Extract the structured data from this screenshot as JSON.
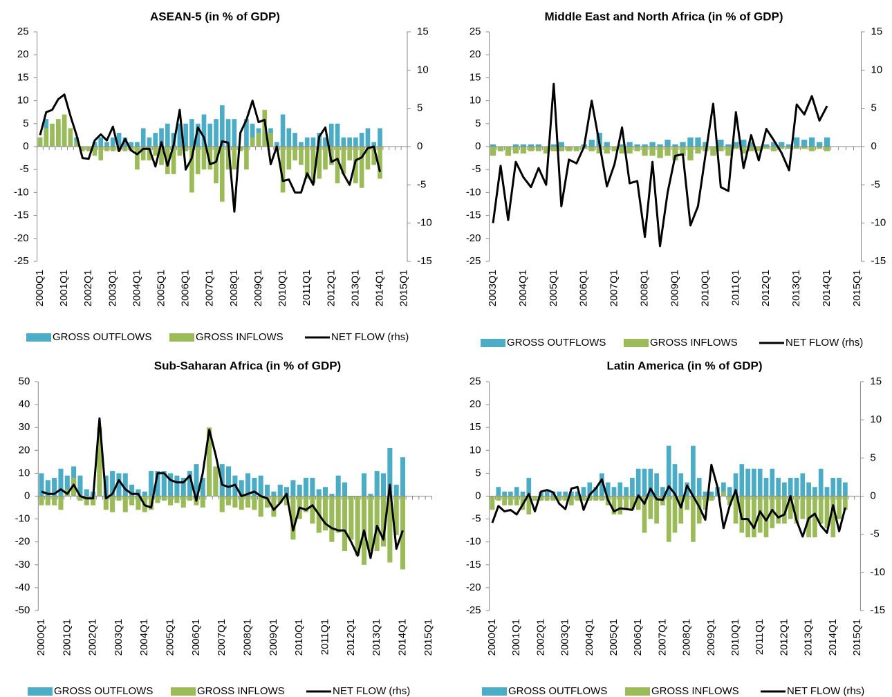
{
  "chart_data": [
    {
      "type": "bar",
      "title": "ASEAN-5 (in % of GDP)",
      "categories": [
        "2000Q1",
        null,
        null,
        null,
        "2001Q1",
        null,
        null,
        null,
        "2002Q1",
        null,
        null,
        null,
        "2003Q1",
        null,
        null,
        null,
        "2004Q1",
        null,
        null,
        null,
        "2005Q1",
        null,
        null,
        null,
        "2006Q1",
        null,
        null,
        null,
        "2007Q1",
        null,
        null,
        null,
        "2008Q1",
        null,
        null,
        null,
        "2009Q1",
        null,
        null,
        null,
        "2010Q1",
        null,
        null,
        null,
        "2011Q1",
        null,
        null,
        null,
        "2012Q1",
        null,
        null,
        null,
        "2013Q1",
        null,
        null,
        null,
        "2014Q1",
        null,
        null,
        null,
        "2015Q1"
      ],
      "series": [
        {
          "name": "GROSS OUTFLOWS",
          "color": "#4bacc6",
          "values": [
            2,
            6,
            2,
            5,
            5,
            2,
            2,
            0,
            -1,
            1,
            2,
            1,
            2,
            3,
            2,
            1,
            1,
            4,
            2,
            3,
            4,
            5,
            3,
            5,
            5,
            6,
            5,
            7,
            5,
            6,
            9,
            6,
            6,
            0,
            6,
            5,
            4,
            3,
            4,
            1,
            7,
            4,
            3,
            1,
            2,
            2,
            3,
            2,
            5,
            5,
            2,
            2,
            2,
            3,
            4,
            1,
            4,
            null,
            null,
            null,
            null
          ]
        },
        {
          "name": "GROSS INFLOWS",
          "color": "#9bbb59",
          "values": [
            2,
            4,
            5,
            6,
            7,
            4,
            1,
            -1,
            -1,
            -2,
            -3,
            -1,
            -1,
            -1,
            -1,
            -1,
            -5,
            -3,
            -3,
            -2,
            -4,
            -6,
            -6,
            -2,
            -1,
            -10,
            -6,
            -5,
            -5,
            -8,
            -12,
            -5,
            -5,
            -1,
            -5,
            2,
            3,
            8,
            3,
            -1,
            -10,
            -5,
            -3,
            -4,
            -7,
            -8,
            -7,
            -5,
            -4,
            -8,
            -6,
            -3,
            -8,
            -9,
            -5,
            -4,
            -7,
            null,
            null,
            null,
            null
          ]
        },
        {
          "name": "NET FLOW (rhs)",
          "color": "#000000",
          "type": "line",
          "axis": "y2",
          "values": [
            1.5,
            4.5,
            4.8,
            6.2,
            6.8,
            4,
            1.5,
            -1.5,
            -1.6,
            0.8,
            1.6,
            0.8,
            2.6,
            -0.6,
            1,
            -0.5,
            -1,
            -0.3,
            -0.3,
            -2.6,
            0.6,
            -2.5,
            0.2,
            4.8,
            -3,
            -1.5,
            2.5,
            1.2,
            -2.3,
            -2,
            0.7,
            0.5,
            -8.5,
            1.8,
            3.5,
            6,
            3.2,
            3.5,
            -2.3,
            0,
            -4.5,
            -4.3,
            -6,
            -6,
            -3.5,
            -5,
            1.3,
            2.5,
            -2,
            -1.6,
            -3.6,
            -5,
            -1.8,
            -1.4,
            -0.2,
            0,
            -3.3,
            null,
            null,
            null,
            null
          ]
        }
      ],
      "ylim": [
        -25,
        25
      ],
      "yticks": [
        -25,
        -20,
        -15,
        -10,
        -5,
        0,
        5,
        10,
        15,
        20,
        25
      ],
      "y2lim": [
        -15,
        15
      ],
      "y2ticks": [
        -15,
        -10,
        -5,
        0,
        5,
        10,
        15
      ]
    },
    {
      "type": "bar",
      "title": "Middle East and North Africa (in % of GDP)",
      "categories": [
        "2003Q1",
        null,
        null,
        null,
        "2004Q1",
        null,
        null,
        null,
        "2005Q1",
        null,
        null,
        null,
        "2006Q1",
        null,
        null,
        null,
        "2007Q1",
        null,
        null,
        null,
        "2008Q1",
        null,
        null,
        null,
        "2009Q1",
        null,
        null,
        null,
        "2010Q1",
        null,
        null,
        null,
        "2011Q1",
        null,
        null,
        null,
        "2012Q1",
        null,
        null,
        null,
        "2013Q1",
        null,
        null,
        null,
        "2014Q1",
        null,
        null,
        null,
        "2015Q1"
      ],
      "series": [
        {
          "name": "GROSS OUTFLOWS",
          "color": "#4bacc6",
          "values": [
            0.5,
            -1,
            0,
            0.5,
            0.5,
            0.5,
            0.5,
            0,
            0.5,
            1,
            -0.5,
            0,
            0.5,
            1.5,
            3,
            1,
            0,
            0.5,
            1,
            0.5,
            0.5,
            1,
            0.5,
            1.5,
            0.5,
            1,
            2,
            2,
            1,
            0,
            1.5,
            0.5,
            1,
            1.5,
            1,
            0,
            0.5,
            1,
            1,
            0.5,
            2,
            1.5,
            2,
            1,
            2,
            null,
            null,
            null,
            null
          ]
        },
        {
          "name": "GROSS INFLOWS",
          "color": "#9bbb59",
          "values": [
            -2,
            -1,
            -2,
            -1.5,
            -1.5,
            -1,
            -1,
            -1.5,
            -1,
            -1,
            -1,
            -1,
            -0.5,
            -1,
            -1.5,
            -1.5,
            -1,
            -1.5,
            -1.5,
            -1,
            -2,
            -2,
            -2.5,
            -2,
            -3,
            -2,
            -3,
            -1.5,
            -1,
            -2,
            -1,
            -2,
            -0.5,
            -1.5,
            -1,
            -1,
            -0.5,
            -1,
            -0.5,
            -0.5,
            -0.5,
            -0.5,
            -1,
            -0.5,
            -1,
            null,
            null,
            null,
            null
          ]
        },
        {
          "name": "NET FLOW (rhs)",
          "color": "#000000",
          "type": "line",
          "axis": "y2",
          "values": [
            -10,
            -2.5,
            -9.6,
            -2,
            -4,
            -5.3,
            -2.8,
            -5,
            8.2,
            -7.8,
            -1.7,
            -2.2,
            0,
            6,
            0.5,
            -5.2,
            -2.3,
            2.5,
            -4.8,
            -4.5,
            -11.8,
            -2,
            -13,
            -6,
            -1.2,
            -1,
            -10.3,
            -7.8,
            -1,
            5.6,
            -5.3,
            -5.8,
            4.5,
            -2.8,
            1.5,
            -1.8,
            2.3,
            0.8,
            -0.8,
            -3.1,
            5.5,
            4.2,
            6.6,
            3.4,
            5.3,
            null,
            null,
            null,
            null
          ]
        }
      ],
      "ylim": [
        -25,
        25
      ],
      "yticks": [
        -25,
        -20,
        -15,
        -10,
        -5,
        0,
        5,
        10,
        15,
        20,
        25
      ],
      "y2lim": [
        -15,
        15
      ],
      "y2ticks": [
        -15,
        -10,
        -5,
        0,
        5,
        10,
        15
      ]
    },
    {
      "type": "bar",
      "title": "Sub-Saharan Africa (in % of GDP)",
      "categories": [
        "2000Q1",
        null,
        null,
        null,
        "2001Q1",
        null,
        null,
        null,
        "2002Q1",
        null,
        null,
        null,
        "2003Q1",
        null,
        null,
        null,
        "2004Q1",
        null,
        null,
        null,
        "2005Q1",
        null,
        null,
        null,
        "2006Q1",
        null,
        null,
        null,
        "2007Q1",
        null,
        null,
        null,
        "2008Q1",
        null,
        null,
        null,
        "2009Q1",
        null,
        null,
        null,
        "2010Q1",
        null,
        null,
        null,
        "2011Q1",
        null,
        null,
        null,
        "2012Q1",
        null,
        null,
        null,
        "2013Q1",
        null,
        null,
        null,
        "2014Q1",
        null,
        null,
        null,
        "2015Q1"
      ],
      "series": [
        {
          "name": "GROSS OUTFLOWS",
          "color": "#4bacc6",
          "values": [
            10,
            7,
            8,
            12,
            9,
            13,
            9,
            3,
            2,
            5,
            9,
            11,
            10,
            10,
            5,
            3,
            2,
            11,
            11,
            11,
            10,
            9,
            8,
            11,
            14,
            8,
            16,
            12,
            14,
            13,
            9,
            7,
            10,
            8,
            9,
            5,
            2,
            5,
            4,
            7,
            5,
            8,
            8,
            3,
            4,
            1,
            9,
            6,
            -1,
            0,
            10,
            1,
            11,
            10,
            21,
            5,
            17,
            null,
            null,
            null,
            null
          ]
        },
        {
          "name": "GROSS INFLOWS",
          "color": "#9bbb59",
          "values": [
            -4,
            -4,
            -4,
            -6,
            3,
            8,
            -2,
            -4,
            -4,
            30,
            -6,
            -7,
            -2,
            -7,
            -4,
            -6,
            -7,
            -6,
            -3,
            -2,
            -4,
            -3,
            -5,
            -2,
            -4,
            -5,
            30,
            13,
            -7,
            -4,
            -5,
            -6,
            -5,
            -6,
            -9,
            -5,
            -9,
            -3,
            -4,
            -19,
            -10,
            -7,
            -12,
            -16,
            -15,
            -20,
            -16,
            -24,
            -19,
            -26,
            -30,
            -24,
            -24,
            -22,
            -29,
            -17,
            -32,
            null,
            null,
            null,
            null
          ]
        },
        {
          "name": "NET FLOW (rhs)",
          "color": "#000000",
          "type": "line",
          "values": [
            2,
            1,
            1,
            3,
            1,
            5,
            0,
            -1,
            -1,
            34,
            -1,
            1,
            7,
            3,
            1,
            1,
            -4,
            -5,
            10,
            10,
            7,
            6,
            6,
            9,
            -2,
            10,
            29,
            18,
            5,
            4,
            5,
            0,
            1,
            2,
            0,
            -1,
            -6,
            -3,
            1,
            -15,
            -5,
            -6,
            -4,
            -8,
            -12,
            -14,
            -15,
            -15,
            -20,
            -26,
            -15,
            -27,
            -13,
            -19,
            5,
            -23,
            -15,
            null,
            null,
            null,
            null
          ]
        }
      ],
      "ylim": [
        -50,
        50
      ],
      "yticks": [
        -50,
        -40,
        -30,
        -20,
        -10,
        0,
        10,
        20,
        30,
        40,
        50
      ]
    },
    {
      "type": "bar",
      "title": "Latin America (in % of GDP)",
      "categories": [
        "2000Q1",
        null,
        null,
        null,
        "2001Q1",
        null,
        null,
        null,
        "2002Q1",
        null,
        null,
        null,
        "2003Q1",
        null,
        null,
        null,
        "2004Q1",
        null,
        null,
        null,
        "2005Q1",
        null,
        null,
        null,
        "2006Q1",
        null,
        null,
        null,
        "2007Q1",
        null,
        null,
        null,
        "2008Q1",
        null,
        null,
        null,
        "2009Q1",
        null,
        null,
        null,
        "2010Q1",
        null,
        null,
        null,
        "2011Q1",
        null,
        null,
        null,
        "2012Q1",
        null,
        null,
        null,
        "2013Q1",
        null,
        null,
        null,
        "2014Q1",
        null,
        null,
        null,
        "2015Q1"
      ],
      "series": [
        {
          "name": "GROSS OUTFLOWS",
          "color": "#4bacc6",
          "values": [
            0,
            2,
            1,
            1,
            2,
            1,
            4,
            0,
            1,
            1,
            1,
            1,
            1,
            1,
            1,
            2,
            3,
            2,
            5,
            3,
            2,
            3,
            2,
            4,
            6,
            6,
            6,
            5,
            2,
            11,
            7,
            5,
            3,
            11,
            4,
            1,
            1,
            2,
            3,
            2,
            5,
            7,
            6,
            6,
            6,
            4,
            6,
            4,
            3,
            4,
            4,
            5,
            3,
            2,
            6,
            2,
            4,
            4,
            3,
            null,
            null
          ]
        },
        {
          "name": "GROSS INFLOWS",
          "color": "#9bbb59",
          "values": [
            -3,
            -1,
            -2,
            -2,
            -2,
            -3,
            -4,
            -1,
            -1,
            -1,
            -1,
            -1,
            -1,
            -2,
            -1,
            -1,
            -1,
            -1,
            -1,
            -2,
            -4,
            -4,
            -3,
            -3,
            -3,
            -8,
            -5,
            -6,
            -2,
            -10,
            -8,
            -6,
            -3,
            -10,
            -6,
            -3,
            -1,
            0,
            1,
            -2,
            -6,
            -8,
            -9,
            -9,
            -8,
            -9,
            -7,
            -6,
            -6,
            -5,
            -6,
            -5,
            -9,
            -9,
            -6,
            -7,
            -9,
            -5,
            -3,
            null,
            null
          ]
        },
        {
          "name": "NET FLOW (rhs)",
          "color": "#000000",
          "type": "line",
          "axis": "y2",
          "values": [
            -3.5,
            -1.3,
            -2,
            -1.8,
            -2.4,
            -1.1,
            0.3,
            -2,
            0.6,
            0.8,
            0.5,
            -1,
            -1.7,
            1,
            1.2,
            -1.8,
            0.2,
            1,
            2.2,
            -0.5,
            -2,
            -1.6,
            -1.7,
            -1.8,
            0.1,
            -1,
            1,
            -0.4,
            -0.5,
            1.3,
            0.3,
            -1.5,
            1.4,
            0,
            -1.4,
            -3.1,
            4.1,
            1.2,
            -4.2,
            -1.3,
            0.8,
            -3,
            -3,
            -4.2,
            -2,
            -3.2,
            -1.8,
            -2.8,
            -2.4,
            0,
            -3.2,
            -5.3,
            -2.9,
            -2.3,
            -3.9,
            -4.8,
            -1.2,
            -4.6,
            -1.5,
            null,
            null
          ]
        }
      ],
      "ylim": [
        -25,
        25
      ],
      "yticks": [
        -25,
        -20,
        -15,
        -10,
        -5,
        0,
        5,
        10,
        15,
        20,
        25
      ],
      "y2lim": [
        -15,
        15
      ],
      "y2ticks": [
        -15,
        -10,
        -5,
        0,
        5,
        10,
        15
      ]
    }
  ]
}
